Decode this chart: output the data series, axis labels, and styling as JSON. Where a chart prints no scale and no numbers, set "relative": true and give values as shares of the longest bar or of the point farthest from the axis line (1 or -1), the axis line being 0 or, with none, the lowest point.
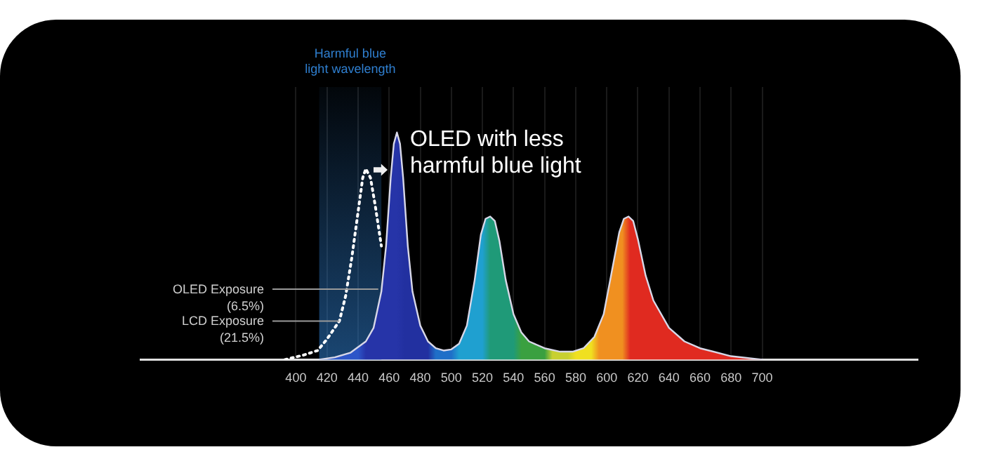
{
  "chart_data": {
    "type": "area",
    "relative": true,
    "xlim": [
      300,
      800
    ],
    "xticks": [
      400,
      420,
      440,
      460,
      480,
      500,
      520,
      540,
      560,
      580,
      600,
      620,
      640,
      660,
      680,
      700
    ],
    "grid": "x",
    "x": [
      415,
      425,
      435,
      445,
      450,
      455,
      458,
      461,
      463,
      465,
      467,
      469,
      472,
      475,
      480,
      485,
      490,
      495,
      500,
      505,
      510,
      515,
      519,
      522,
      525,
      528,
      531,
      535,
      540,
      545,
      550,
      560,
      570,
      578,
      585,
      592,
      598,
      603,
      608,
      611,
      614,
      617,
      620,
      625,
      630,
      640,
      650,
      660,
      680,
      700
    ],
    "series": [
      {
        "color": "#d8d8e8",
        "values": [
          0,
          0.01,
          0.03,
          0.08,
          0.14,
          0.3,
          0.5,
          0.8,
          0.95,
          1,
          0.95,
          0.8,
          0.5,
          0.3,
          0.15,
          0.08,
          0.05,
          0.04,
          0.045,
          0.07,
          0.15,
          0.35,
          0.55,
          0.62,
          0.63,
          0.61,
          0.52,
          0.35,
          0.2,
          0.12,
          0.08,
          0.05,
          0.035,
          0.035,
          0.05,
          0.1,
          0.2,
          0.38,
          0.56,
          0.62,
          0.63,
          0.61,
          0.53,
          0.37,
          0.26,
          0.14,
          0.08,
          0.05,
          0.015,
          0
        ]
      },
      {
        "type": "line",
        "color": "#ffffff",
        "line_style": "dotted",
        "x": [
          393,
          405,
          414,
          420,
          425,
          428,
          432,
          436,
          440,
          443,
          445,
          448,
          451,
          455
        ],
        "values": [
          0,
          0.02,
          0.04,
          0.09,
          0.14,
          0.17,
          0.28,
          0.45,
          0.65,
          0.8,
          0.84,
          0.8,
          0.68,
          0.5
        ]
      }
    ],
    "bands": [
      {
        "axis": "x",
        "from": 415,
        "to": 455,
        "label": "Harmful blue light wavelength",
        "color": "#2f7fd0"
      }
    ],
    "annotations": [
      "OLED with less harmful blue light",
      {
        "text": "OLED Exposure\n(6.5%)",
        "x": 453,
        "y": 0.31
      },
      {
        "text": "LCD Exposure\n(21.5%)",
        "x": 428,
        "y": 0.17
      }
    ]
  }
}
